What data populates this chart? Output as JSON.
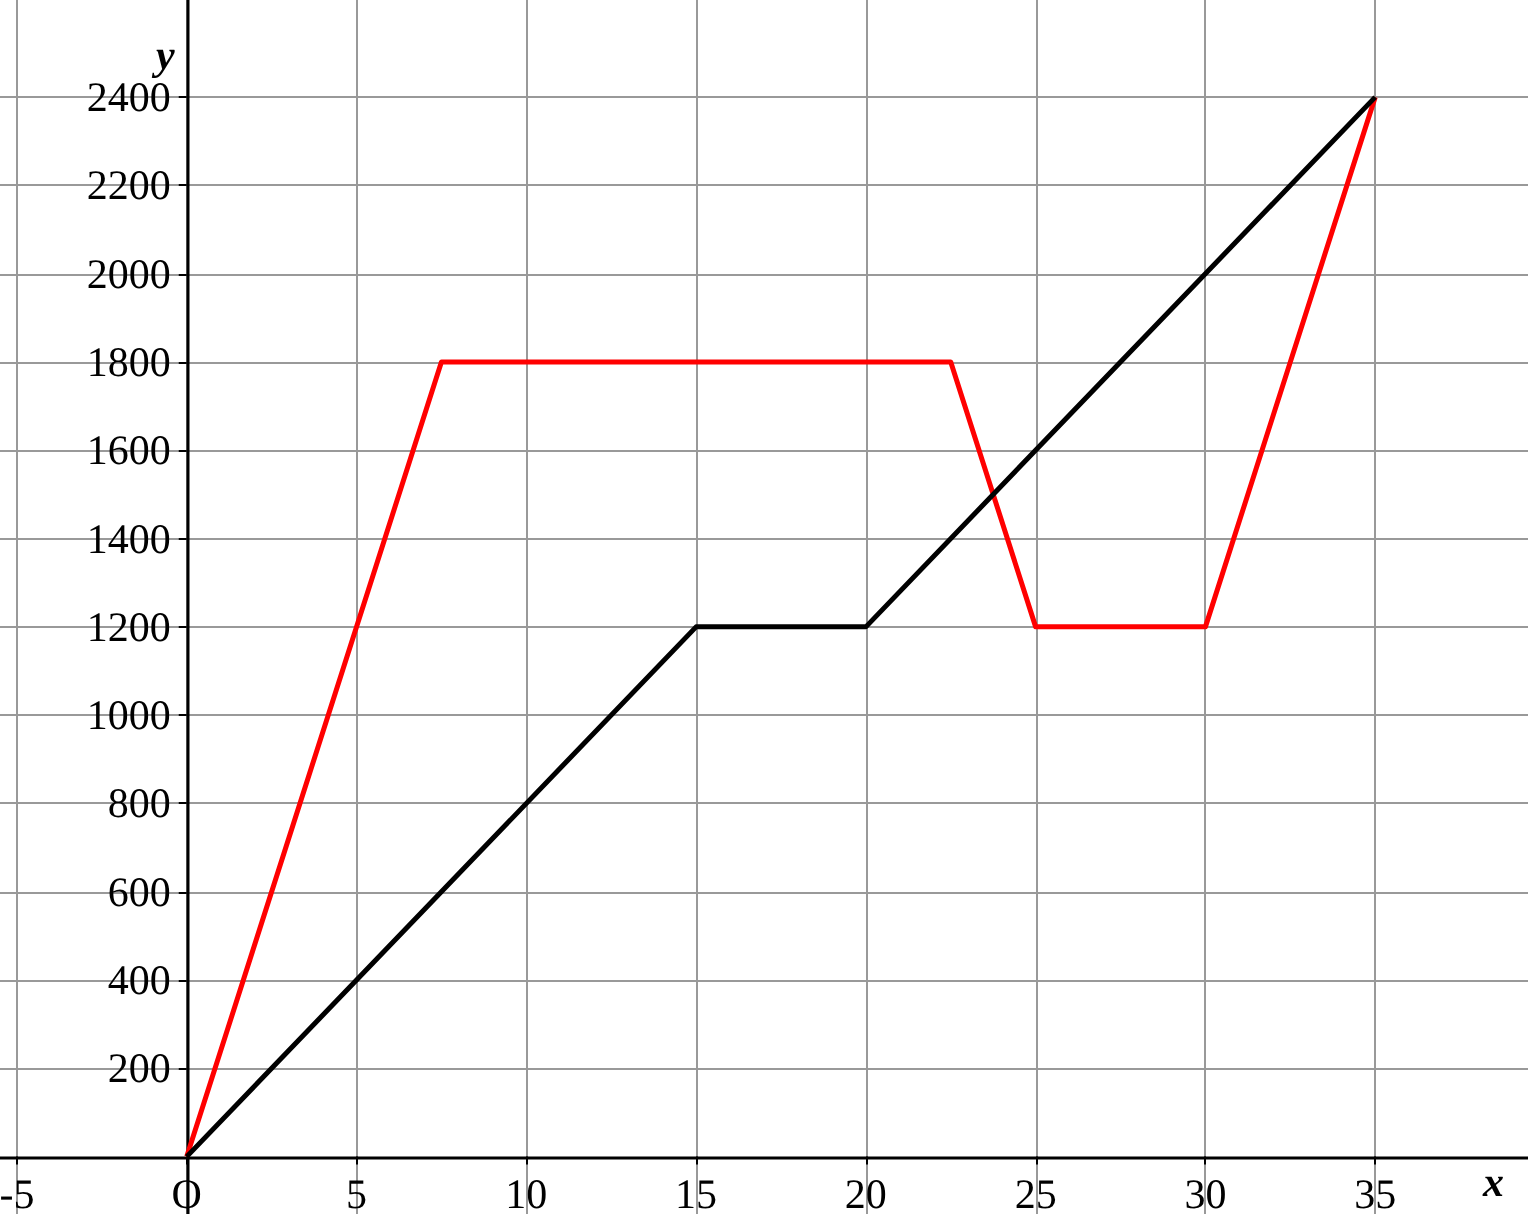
{
  "chart_data": {
    "type": "line",
    "xlabel": "x",
    "ylabel": "y",
    "series": [
      {
        "color": "#ff0000",
        "x": [
          0,
          7.5,
          22.5,
          25,
          30,
          35
        ],
        "values": [
          0,
          1800,
          1800,
          1200,
          1200,
          2400
        ]
      },
      {
        "color": "#000000",
        "x": [
          0,
          15,
          20,
          35
        ],
        "values": [
          0,
          1200,
          1200,
          2400
        ]
      }
    ],
    "xlim": [
      -5.5,
      39.5
    ],
    "ylim": [
      -130,
      2620
    ],
    "xticks": [
      {
        "value": -5,
        "label": "-5"
      },
      {
        "value": 0,
        "label": "O"
      },
      5,
      10,
      15,
      20,
      25,
      30,
      35
    ],
    "yticks": [
      200,
      400,
      600,
      800,
      1000,
      1200,
      1400,
      1600,
      1800,
      2000,
      2200,
      2400
    ],
    "grid": true,
    "marker": "none",
    "line_style": "solid"
  }
}
